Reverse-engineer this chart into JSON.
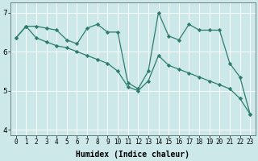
{
  "title": "",
  "xlabel": "Humidex (Indice chaleur)",
  "bg_color": "#cce8e8",
  "line_color": "#2d7d6e",
  "grid_color": "#b0d8d8",
  "xlim": [
    -0.5,
    23.5
  ],
  "ylim": [
    3.85,
    7.25
  ],
  "yticks": [
    4,
    5,
    6,
    7
  ],
  "xticks": [
    0,
    1,
    2,
    3,
    4,
    5,
    6,
    7,
    8,
    9,
    10,
    11,
    12,
    13,
    14,
    15,
    16,
    17,
    18,
    19,
    20,
    21,
    22,
    23
  ],
  "series1_x": [
    0,
    1,
    2,
    3,
    4,
    5,
    6,
    7,
    8,
    9,
    10,
    11,
    12,
    13,
    14,
    15,
    16,
    17,
    18,
    19,
    20,
    21,
    22,
    23
  ],
  "series1_y": [
    6.35,
    6.65,
    6.65,
    6.6,
    6.55,
    6.3,
    6.2,
    6.6,
    6.7,
    6.5,
    6.5,
    5.2,
    5.05,
    5.5,
    7.0,
    6.4,
    6.3,
    6.7,
    6.55,
    6.55,
    6.55,
    5.7,
    5.35,
    4.4
  ],
  "series2_x": [
    0,
    1,
    2,
    3,
    4,
    5,
    6,
    7,
    8,
    9,
    10,
    11,
    12,
    13,
    14,
    15,
    16,
    17,
    18,
    19,
    20,
    21,
    22,
    23
  ],
  "series2_y": [
    6.35,
    6.65,
    6.35,
    6.25,
    6.15,
    6.1,
    6.0,
    5.9,
    5.8,
    5.7,
    5.5,
    5.1,
    5.0,
    5.25,
    5.9,
    5.65,
    5.55,
    5.45,
    5.35,
    5.25,
    5.15,
    5.05,
    4.8,
    4.4
  ],
  "xlabel_fontsize": 7,
  "tick_fontsize_x": 5.5,
  "tick_fontsize_y": 6.5
}
